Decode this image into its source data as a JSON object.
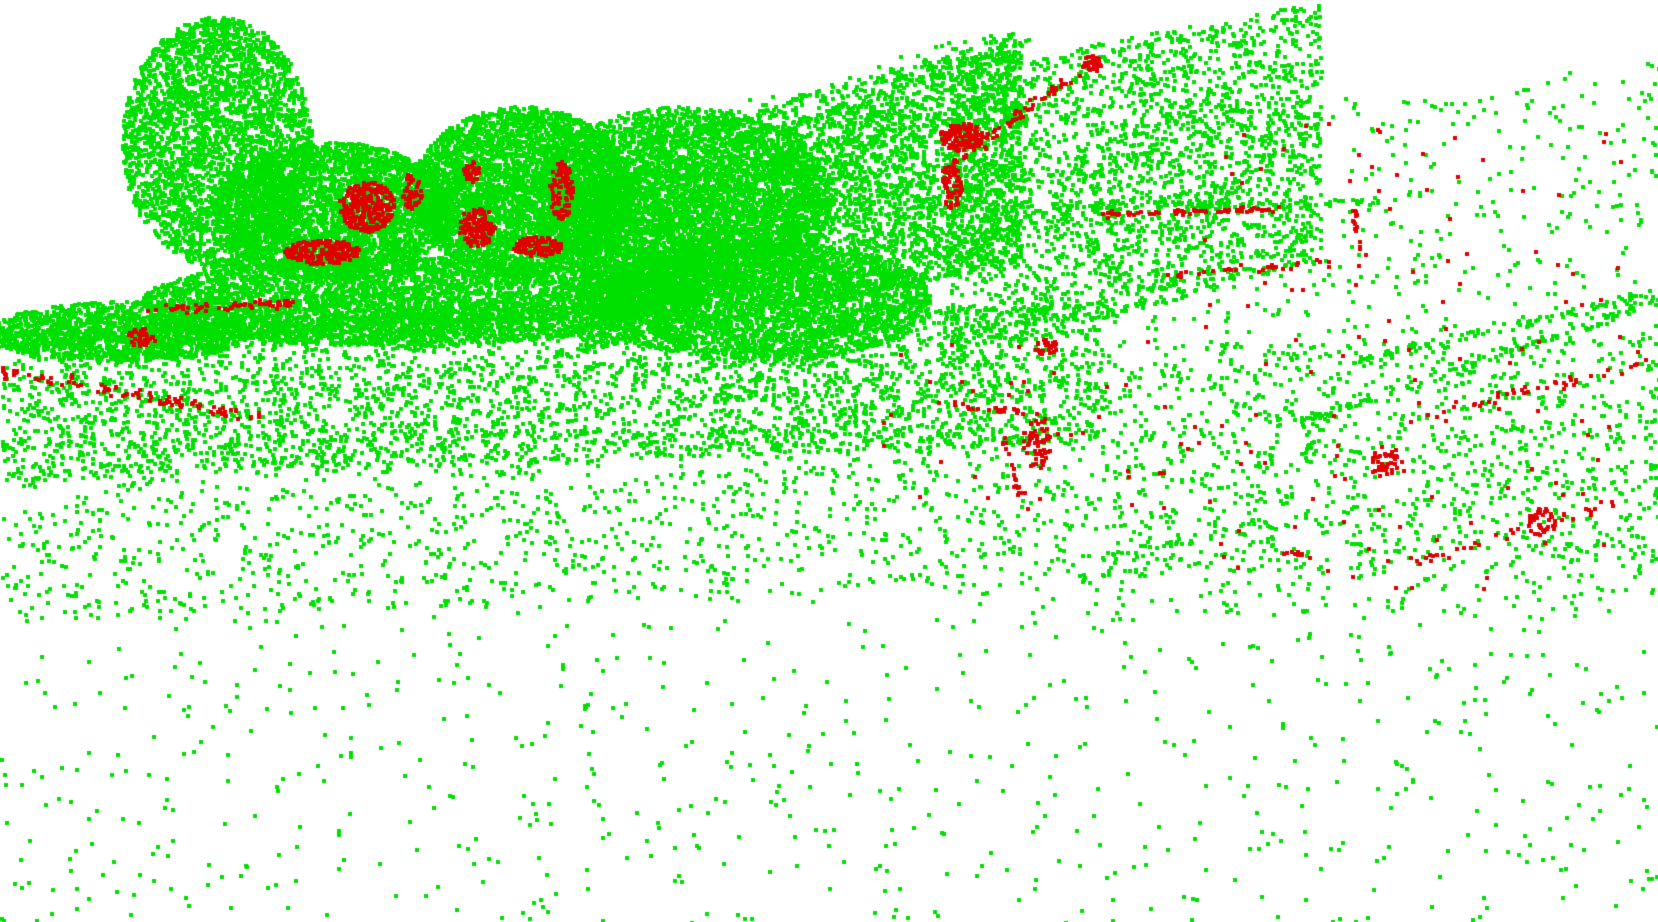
{
  "scene": {
    "background_color": "#ffffff",
    "classes": [
      {
        "id": "match",
        "color": "#00e000"
      },
      {
        "id": "mismatch",
        "color": "#e00000"
      }
    ]
  }
}
